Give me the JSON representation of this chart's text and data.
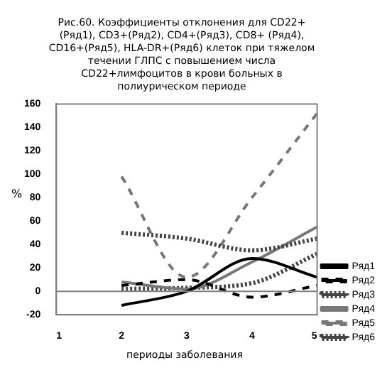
{
  "chart_data": {
    "type": "line",
    "title": "Рис.60. Коэффициенты отклонения для CD22+(Ряд1), CD3+(Ряд2), CD4+(Ряд3), CD8+ (Ряд4), CD16+(Ряд5), HLA-DR+(Ряд6) клеток при тяжелом течении ГЛПС с повышением числа CD22+лимфоцитов в крови больных в полиурическом периоде",
    "xlabel": "периоды заболевания",
    "ylabel": "%",
    "x": [
      2,
      3,
      4,
      5
    ],
    "xlim": [
      1,
      5
    ],
    "xticks": [
      1,
      2,
      3,
      4,
      5
    ],
    "ylim": [
      -20,
      160
    ],
    "yticks": [
      -20,
      0,
      20,
      40,
      60,
      80,
      100,
      120,
      140,
      160
    ],
    "grid": false,
    "ref_lines": [
      {
        "axis": "y",
        "value": 0,
        "color": "#808080"
      }
    ],
    "legend": "right",
    "marker": "none",
    "series": [
      {
        "name": "Ряд1",
        "color": "#000000",
        "line_style": "solid",
        "values": [
          -12,
          0,
          28,
          12
        ]
      },
      {
        "name": "Ряд2",
        "color": "#000000",
        "line_style": "dashed",
        "values": [
          5,
          10,
          -5,
          5
        ]
      },
      {
        "name": "Ряд3",
        "color": "#444444",
        "line_style": "dotted",
        "values": [
          50,
          45,
          35,
          45
        ]
      },
      {
        "name": "Ряд4",
        "color": "#777777",
        "line_style": "solid",
        "values": [
          8,
          2,
          25,
          55
        ]
      },
      {
        "name": "Ряд5",
        "color": "#777777",
        "line_style": "dashed",
        "values": [
          98,
          12,
          80,
          152
        ]
      },
      {
        "name": "Ряд6",
        "color": "#444444",
        "line_style": "dotted",
        "values": [
          2,
          3,
          7,
          32
        ]
      }
    ]
  }
}
